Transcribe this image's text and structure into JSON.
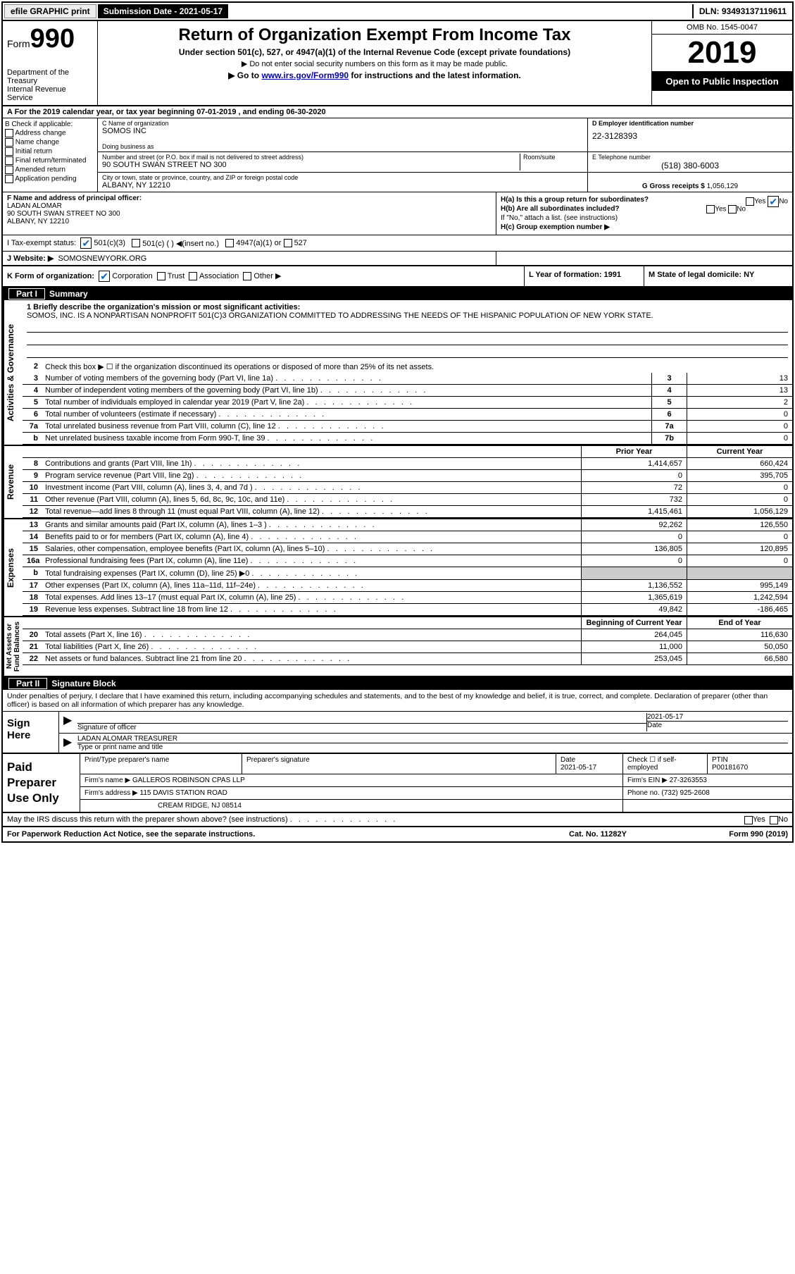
{
  "topbar": {
    "efile": "efile GRAPHIC print",
    "submission": "Submission Date - 2021-05-17",
    "dln": "DLN: 93493137119611"
  },
  "header": {
    "form_label": "Form",
    "form_num": "990",
    "dept": "Department of the Treasury\nInternal Revenue Service",
    "title": "Return of Organization Exempt From Income Tax",
    "sub1": "Under section 501(c), 527, or 4947(a)(1) of the Internal Revenue Code (except private foundations)",
    "sub2": "▶ Do not enter social security numbers on this form as it may be made public.",
    "sub3_pre": "▶ Go to ",
    "sub3_link": "www.irs.gov/Form990",
    "sub3_post": " for instructions and the latest information.",
    "omb": "OMB No. 1545-0047",
    "year": "2019",
    "open": "Open to Public Inspection"
  },
  "row_a": "A For the 2019 calendar year, or tax year beginning 07-01-2019   , and ending 06-30-2020",
  "col_b": {
    "hdr": "B Check if applicable:",
    "items": [
      "Address change",
      "Name change",
      "Initial return",
      "Final return/terminated",
      "Amended return",
      "Application pending"
    ]
  },
  "col_c": {
    "name_lbl": "C Name of organization",
    "name": "SOMOS INC",
    "dba_lbl": "Doing business as",
    "dba": "",
    "addr_lbl": "Number and street (or P.O. box if mail is not delivered to street address)",
    "room_lbl": "Room/suite",
    "addr": "90 SOUTH SWAN STREET NO 300",
    "city_lbl": "City or town, state or province, country, and ZIP or foreign postal code",
    "city": "ALBANY, NY  12210"
  },
  "col_d": {
    "ein_lbl": "D Employer identification number",
    "ein": "22-3128393",
    "tel_lbl": "E Telephone number",
    "tel": "(518) 380-6003",
    "gross_lbl": "G Gross receipts $",
    "gross": "1,056,129"
  },
  "col_f": {
    "lbl": "F  Name and address of principal officer:",
    "name": "LADAN ALOMAR",
    "addr1": "90 SOUTH SWAN STREET NO 300",
    "addr2": "ALBANY, NY  12210"
  },
  "col_h": {
    "ha": "H(a)  Is this a group return for subordinates?",
    "ha_yes": "Yes",
    "ha_no": "No",
    "hb": "H(b)  Are all subordinates included?",
    "hb_yes": "Yes",
    "hb_no": "No",
    "hb_note": "If \"No,\" attach a list. (see instructions)",
    "hc": "H(c)  Group exemption number ▶"
  },
  "row_i": {
    "lbl": "I   Tax-exempt status:",
    "o1": "501(c)(3)",
    "o2": "501(c) (  ) ◀(insert no.)",
    "o3": "4947(a)(1) or",
    "o4": "527"
  },
  "row_j": {
    "lbl": "J   Website: ▶",
    "val": "SOMOSNEWYORK.ORG"
  },
  "row_k": {
    "k": "K Form of organization:",
    "k1": "Corporation",
    "k2": "Trust",
    "k3": "Association",
    "k4": "Other ▶",
    "l": "L Year of formation: 1991",
    "m": "M State of legal domicile: NY"
  },
  "part1": {
    "title": "Summary",
    "q1_lbl": "1  Briefly describe the organization's mission or most significant activities:",
    "q1_text": "SOMOS, INC. IS A NONPARTISAN NONPROFIT 501(C)3 ORGANIZATION COMMITTED TO ADDRESSING THE NEEDS OF THE HISPANIC POPULATION OF NEW YORK STATE.",
    "q2": "Check this box ▶ ☐  if the organization discontinued its operations or disposed of more than 25% of its net assets.",
    "rows_a": [
      {
        "n": "3",
        "t": "Number of voting members of the governing body (Part VI, line 1a)",
        "box": "3",
        "v": "13"
      },
      {
        "n": "4",
        "t": "Number of independent voting members of the governing body (Part VI, line 1b)",
        "box": "4",
        "v": "13"
      },
      {
        "n": "5",
        "t": "Total number of individuals employed in calendar year 2019 (Part V, line 2a)",
        "box": "5",
        "v": "2"
      },
      {
        "n": "6",
        "t": "Total number of volunteers (estimate if necessary)",
        "box": "6",
        "v": "0"
      },
      {
        "n": "7a",
        "t": "Total unrelated business revenue from Part VIII, column (C), line 12",
        "box": "7a",
        "v": "0"
      },
      {
        "n": "b",
        "t": "Net unrelated business taxable income from Form 990-T, line 39",
        "box": "7b",
        "v": "0"
      }
    ],
    "hdr_prior": "Prior Year",
    "hdr_curr": "Current Year",
    "rows_rev": [
      {
        "n": "8",
        "t": "Contributions and grants (Part VIII, line 1h)",
        "p": "1,414,657",
        "c": "660,424"
      },
      {
        "n": "9",
        "t": "Program service revenue (Part VIII, line 2g)",
        "p": "0",
        "c": "395,705"
      },
      {
        "n": "10",
        "t": "Investment income (Part VIII, column (A), lines 3, 4, and 7d )",
        "p": "72",
        "c": "0"
      },
      {
        "n": "11",
        "t": "Other revenue (Part VIII, column (A), lines 5, 6d, 8c, 9c, 10c, and 11e)",
        "p": "732",
        "c": "0"
      },
      {
        "n": "12",
        "t": "Total revenue—add lines 8 through 11 (must equal Part VIII, column (A), line 12)",
        "p": "1,415,461",
        "c": "1,056,129"
      }
    ],
    "rows_exp": [
      {
        "n": "13",
        "t": "Grants and similar amounts paid (Part IX, column (A), lines 1–3 )",
        "p": "92,262",
        "c": "126,550"
      },
      {
        "n": "14",
        "t": "Benefits paid to or for members (Part IX, column (A), line 4)",
        "p": "0",
        "c": "0"
      },
      {
        "n": "15",
        "t": "Salaries, other compensation, employee benefits (Part IX, column (A), lines 5–10)",
        "p": "136,805",
        "c": "120,895"
      },
      {
        "n": "16a",
        "t": "Professional fundraising fees (Part IX, column (A), line 11e)",
        "p": "0",
        "c": "0"
      },
      {
        "n": "b",
        "t": "Total fundraising expenses (Part IX, column (D), line 25) ▶0",
        "p": "",
        "c": "",
        "shade": true
      },
      {
        "n": "17",
        "t": "Other expenses (Part IX, column (A), lines 11a–11d, 11f–24e)",
        "p": "1,136,552",
        "c": "995,149"
      },
      {
        "n": "18",
        "t": "Total expenses. Add lines 13–17 (must equal Part IX, column (A), line 25)",
        "p": "1,365,619",
        "c": "1,242,594"
      },
      {
        "n": "19",
        "t": "Revenue less expenses. Subtract line 18 from line 12",
        "p": "49,842",
        "c": "-186,465"
      }
    ],
    "hdr_beg": "Beginning of Current Year",
    "hdr_end": "End of Year",
    "rows_net": [
      {
        "n": "20",
        "t": "Total assets (Part X, line 16)",
        "p": "264,045",
        "c": "116,630"
      },
      {
        "n": "21",
        "t": "Total liabilities (Part X, line 26)",
        "p": "11,000",
        "c": "50,050"
      },
      {
        "n": "22",
        "t": "Net assets or fund balances. Subtract line 21 from line 20",
        "p": "253,045",
        "c": "66,580"
      }
    ],
    "side_a": "Activities & Governance",
    "side_r": "Revenue",
    "side_e": "Expenses",
    "side_n": "Net Assets or\nFund Balances"
  },
  "part2": {
    "title": "Signature Block",
    "decl": "Under penalties of perjury, I declare that I have examined this return, including accompanying schedules and statements, and to the best of my knowledge and belief, it is true, correct, and complete. Declaration of preparer (other than officer) is based on all information of which preparer has any knowledge.",
    "sign_here": "Sign Here",
    "sig_officer": "Signature of officer",
    "sig_date": "2021-05-17",
    "sig_date_lbl": "Date",
    "sig_name": "LADAN ALOMAR  TREASURER",
    "sig_name_lbl": "Type or print name and title",
    "paid": "Paid Preparer Use Only",
    "prep_name_lbl": "Print/Type preparer's name",
    "prep_sig_lbl": "Preparer's signature",
    "prep_date_lbl": "Date",
    "prep_date": "2021-05-17",
    "prep_check": "Check ☐ if self-employed",
    "ptin_lbl": "PTIN",
    "ptin": "P00181670",
    "firm_name_lbl": "Firm's name    ▶",
    "firm_name": "GALLEROS ROBINSON CPAS LLP",
    "firm_ein_lbl": "Firm's EIN ▶",
    "firm_ein": "27-3263553",
    "firm_addr_lbl": "Firm's address ▶",
    "firm_addr1": "115 DAVIS STATION ROAD",
    "firm_addr2": "CREAM RIDGE, NJ  08514",
    "phone_lbl": "Phone no.",
    "phone": "(732) 925-2608",
    "discuss": "May the IRS discuss this return with the preparer shown above? (see instructions)",
    "d_yes": "Yes",
    "d_no": "No"
  },
  "footer": {
    "l": "For Paperwork Reduction Act Notice, see the separate instructions.",
    "c": "Cat. No. 11282Y",
    "r": "Form 990 (2019)"
  }
}
